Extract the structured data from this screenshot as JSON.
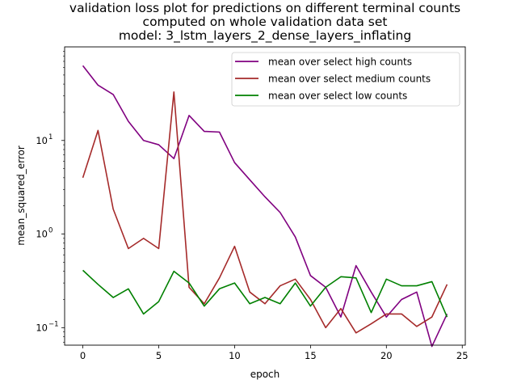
{
  "chart_data": {
    "type": "line",
    "title_lines": [
      "validation loss plot for predictions on different terminal counts",
      "computed on whole validation data set",
      "model: 3_lstm_layers_2_dense_layers_inflating"
    ],
    "xlabel": "epoch",
    "ylabel": "mean_squared_error",
    "xlim": [
      -1.2,
      25.2
    ],
    "ylim": [
      0.065,
      100
    ],
    "yscale": "log",
    "x_ticks": [
      0,
      5,
      10,
      15,
      20,
      25
    ],
    "y_ticks": [
      0.1,
      1,
      10
    ],
    "y_tick_labels": [
      {
        "base": "10",
        "exp": "−1"
      },
      {
        "base": "10",
        "exp": "0"
      },
      {
        "base": "10",
        "exp": "1"
      }
    ],
    "grid": false,
    "legend_position": "top-right",
    "x": [
      0,
      1,
      2,
      3,
      4,
      5,
      6,
      7,
      8,
      9,
      10,
      11,
      12,
      13,
      14,
      15,
      16,
      17,
      18,
      19,
      20,
      21,
      22,
      23,
      24
    ],
    "series": [
      {
        "name": "mean over select high counts",
        "color": "#800080",
        "values": [
          63,
          39,
          31,
          16,
          10,
          9,
          6.4,
          18.5,
          12.5,
          12.3,
          5.8,
          3.8,
          2.5,
          1.7,
          0.93,
          0.36,
          0.27,
          0.13,
          0.46,
          0.24,
          0.13,
          0.2,
          0.24,
          0.063,
          0.14
        ]
      },
      {
        "name": "mean over select medium counts",
        "color": "#a52a2a",
        "values": [
          4.0,
          12.8,
          1.85,
          0.7,
          0.9,
          0.7,
          33,
          0.27,
          0.18,
          0.34,
          0.74,
          0.24,
          0.18,
          0.28,
          0.33,
          0.2,
          0.1,
          0.16,
          0.088,
          0.11,
          0.14,
          0.14,
          0.103,
          0.13,
          0.29
        ]
      },
      {
        "name": "mean over select low counts",
        "color": "#008000",
        "values": [
          0.41,
          0.29,
          0.21,
          0.26,
          0.14,
          0.19,
          0.4,
          0.3,
          0.17,
          0.26,
          0.3,
          0.18,
          0.21,
          0.18,
          0.3,
          0.17,
          0.27,
          0.35,
          0.34,
          0.145,
          0.33,
          0.28,
          0.28,
          0.31,
          0.13
        ]
      }
    ]
  }
}
